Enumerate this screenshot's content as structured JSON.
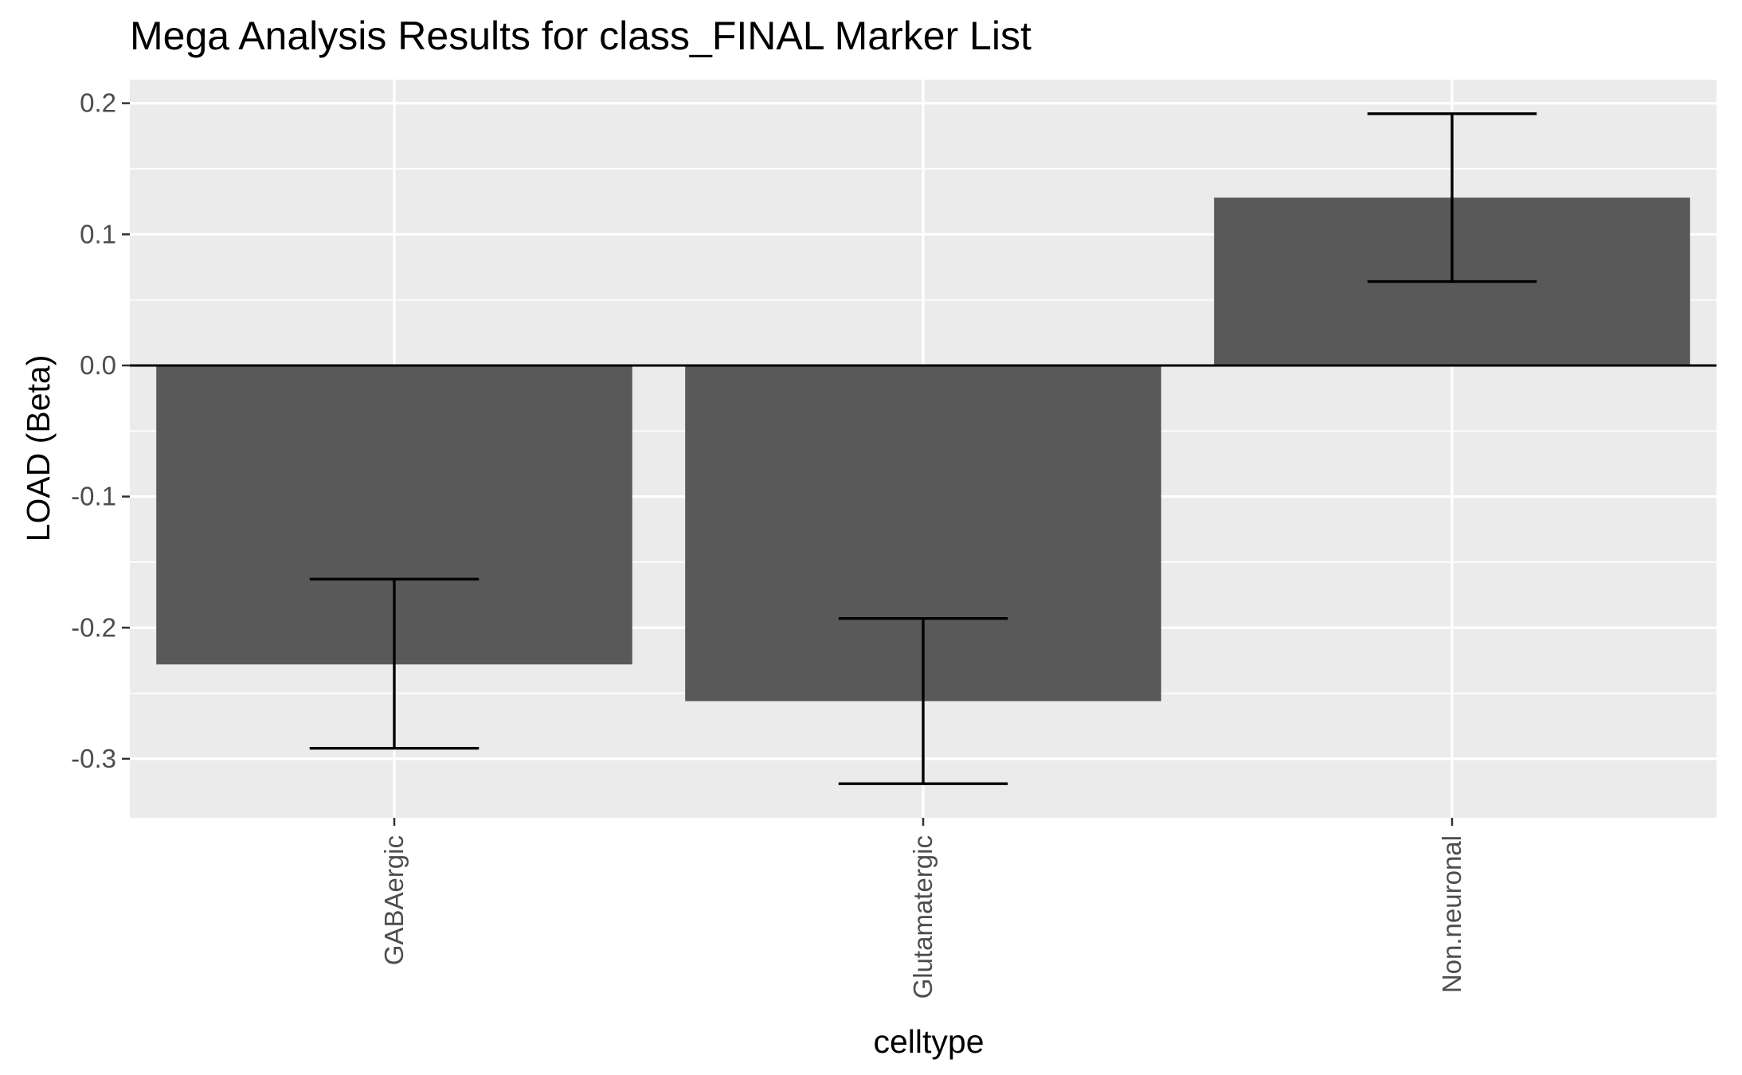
{
  "chart_data": {
    "type": "bar",
    "title": "Mega Analysis Results for class_FINAL Marker List",
    "xlabel": "celltype",
    "ylabel": "LOAD (Beta)",
    "categories": [
      "GABAergic",
      "Glutamatergic",
      "Non.neuronal"
    ],
    "values": [
      -0.228,
      -0.256,
      0.128
    ],
    "error_lower": [
      -0.292,
      -0.319,
      0.064
    ],
    "error_upper": [
      -0.163,
      -0.193,
      0.192
    ],
    "ylim": [
      -0.345,
      0.218
    ],
    "yticks": [
      -0.3,
      -0.2,
      -0.1,
      0.0,
      0.1,
      0.2
    ],
    "ytick_labels": [
      "-0.3",
      "-0.2",
      "-0.1",
      "0.0",
      "0.1",
      "0.2"
    ],
    "grid": true,
    "legend": "none",
    "colors": {
      "bar": "#595959",
      "panel": "#ebebeb",
      "grid": "#ffffff",
      "error_bar": "#000000",
      "zero_line": "#000000"
    }
  }
}
